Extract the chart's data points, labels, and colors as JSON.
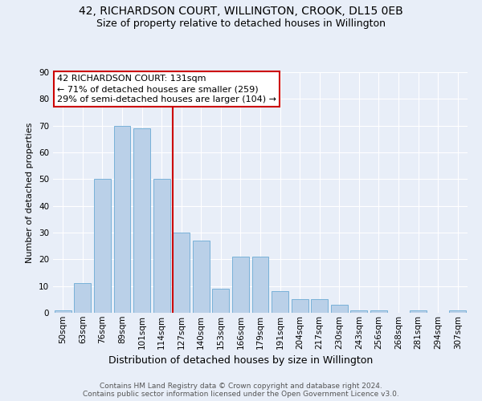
{
  "title": "42, RICHARDSON COURT, WILLINGTON, CROOK, DL15 0EB",
  "subtitle": "Size of property relative to detached houses in Willington",
  "xlabel": "Distribution of detached houses by size in Willington",
  "ylabel": "Number of detached properties",
  "bar_labels": [
    "50sqm",
    "63sqm",
    "76sqm",
    "89sqm",
    "101sqm",
    "114sqm",
    "127sqm",
    "140sqm",
    "153sqm",
    "166sqm",
    "179sqm",
    "191sqm",
    "204sqm",
    "217sqm",
    "230sqm",
    "243sqm",
    "256sqm",
    "268sqm",
    "281sqm",
    "294sqm",
    "307sqm"
  ],
  "bar_values": [
    1,
    11,
    50,
    70,
    69,
    50,
    30,
    27,
    9,
    21,
    21,
    8,
    5,
    5,
    3,
    1,
    1,
    0,
    1,
    0,
    1
  ],
  "bar_color": "#bad0e8",
  "bar_edge_color": "#6aaad4",
  "subject_line_index": 6,
  "subject_line_color": "#cc0000",
  "ylim": [
    0,
    90
  ],
  "yticks": [
    0,
    10,
    20,
    30,
    40,
    50,
    60,
    70,
    80,
    90
  ],
  "annotation_line1": "42 RICHARDSON COURT: 131sqm",
  "annotation_line2": "← 71% of detached houses are smaller (259)",
  "annotation_line3": "29% of semi-detached houses are larger (104) →",
  "annotation_box_color": "#cc0000",
  "footer1": "Contains HM Land Registry data © Crown copyright and database right 2024.",
  "footer2": "Contains public sector information licensed under the Open Government Licence v3.0.",
  "bg_color": "#e8eef8",
  "plot_bg_color": "#e8eef8",
  "grid_color": "#ffffff",
  "title_fontsize": 10,
  "subtitle_fontsize": 9,
  "ylabel_fontsize": 8,
  "xlabel_fontsize": 9,
  "tick_fontsize": 7.5,
  "footer_fontsize": 6.5,
  "annotation_fontsize": 8
}
